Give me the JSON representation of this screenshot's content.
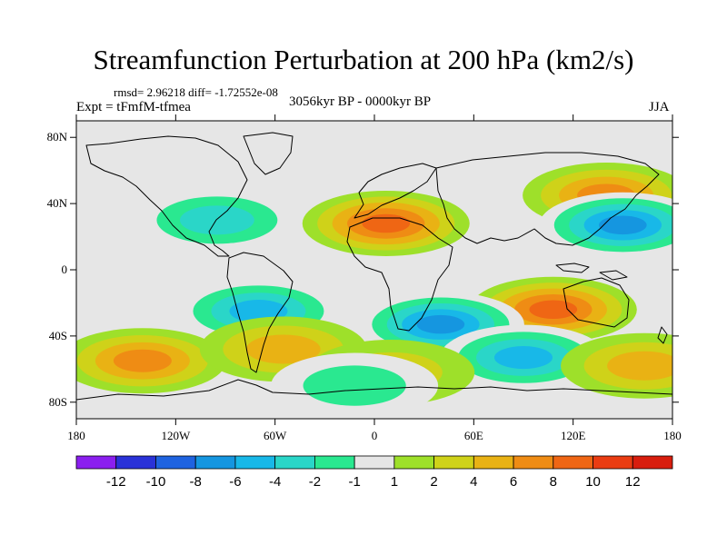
{
  "header": {
    "title": "Streamfunction Perturbation at 200 hPa (km2/s)",
    "stats": "rmsd= 2.96218 diff= -1.72552e-08",
    "experiment": "Expt = tFmfM-tfmea",
    "period": "3056kyr BP - 0000kyr BP",
    "season": "JJA"
  },
  "chart_data": {
    "type": "heatmap",
    "variable": "Streamfunction perturbation at 200 hPa",
    "units": "km2/s",
    "projection": "cylindrical equidistant",
    "x_range": [
      -180,
      180
    ],
    "y_range": [
      -90,
      90
    ],
    "xticks": [
      {
        "value": -180,
        "label": "180"
      },
      {
        "value": -120,
        "label": "120W"
      },
      {
        "value": -60,
        "label": "60W"
      },
      {
        "value": 0,
        "label": "0"
      },
      {
        "value": 60,
        "label": "60E"
      },
      {
        "value": 120,
        "label": "120E"
      },
      {
        "value": 180,
        "label": "180"
      }
    ],
    "yticks": [
      {
        "value": 80,
        "label": "80N"
      },
      {
        "value": 40,
        "label": "40N"
      },
      {
        "value": 0,
        "label": "0"
      },
      {
        "value": -40,
        "label": "40S"
      },
      {
        "value": -80,
        "label": "80S"
      }
    ],
    "colorbar": {
      "labels": [
        "-12",
        "-10",
        "-8",
        "-6",
        "-4",
        "-2",
        "-1",
        "1",
        "2",
        "4",
        "6",
        "8",
        "10",
        "12"
      ],
      "colors": [
        "#8b1fef",
        "#2a32d8",
        "#1f63e0",
        "#1596e0",
        "#18b8e8",
        "#2ad6c8",
        "#2ae890",
        "#e6e6e6",
        "#9ee02a",
        "#cfd219",
        "#e9b214",
        "#ef8c14",
        "#ef6614",
        "#ea3c12",
        "#d81e0e"
      ]
    },
    "regions": [
      {
        "lon": 7,
        "lat": 28,
        "value": 8
      },
      {
        "lon": 140,
        "lat": 45,
        "value": 6
      },
      {
        "lon": 108,
        "lat": -24,
        "value": 8
      },
      {
        "lon": 150,
        "lat": 27,
        "value": -8
      },
      {
        "lon": 40,
        "lat": -33,
        "value": -8
      },
      {
        "lon": -70,
        "lat": -25,
        "value": -6
      },
      {
        "lon": -95,
        "lat": 30,
        "value": -4
      },
      {
        "lon": -140,
        "lat": -55,
        "value": 6
      },
      {
        "lon": 90,
        "lat": -53,
        "value": -6
      },
      {
        "lon": -55,
        "lat": -48,
        "value": 4
      },
      {
        "lon": 163,
        "lat": -58,
        "value": 4
      },
      {
        "lon": 10,
        "lat": -62,
        "value": 2
      },
      {
        "lon": -12,
        "lat": -70,
        "value": -2
      }
    ]
  }
}
